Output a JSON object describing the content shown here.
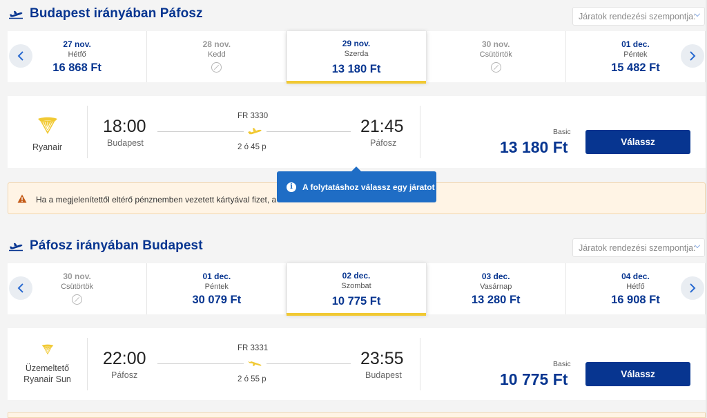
{
  "outbound": {
    "title": "Budapest irányában Páfosz",
    "sort_placeholder": "Járatok rendezési szempontja:",
    "dates": [
      {
        "date": "27 nov.",
        "weekday": "Hétfő",
        "price": "16 868 Ft",
        "available": true,
        "active": false
      },
      {
        "date": "28 nov.",
        "weekday": "Kedd",
        "price": "",
        "available": false,
        "active": false
      },
      {
        "date": "29 nov.",
        "weekday": "Szerda",
        "price": "13 180 Ft",
        "available": true,
        "active": true
      },
      {
        "date": "30 nov.",
        "weekday": "Csütörtök",
        "price": "",
        "available": false,
        "active": false
      },
      {
        "date": "01 dec.",
        "weekday": "Péntek",
        "price": "15 482 Ft",
        "available": true,
        "active": false
      }
    ],
    "flight": {
      "carrier": "Ryanair",
      "departure_time": "18:00",
      "departure_city": "Budapest",
      "flight_number": "FR 3330",
      "duration": "2 ó 45 p",
      "arrival_time": "21:45",
      "arrival_city": "Páfosz",
      "fare_name": "Basic",
      "fare_price": "13 180 Ft",
      "select_label": "Válassz"
    }
  },
  "warning_text": "Ha a megjelenítettől eltérő pénznemben vezetett kártyával fizet, a",
  "tooltip_text": "A folytatáshoz válassz egy járatot",
  "inbound": {
    "title": "Páfosz irányában Budapest",
    "sort_placeholder": "Járatok rendezési szempontja:",
    "dates": [
      {
        "date": "30 nov.",
        "weekday": "Csütörtök",
        "price": "",
        "available": false,
        "active": false
      },
      {
        "date": "01 dec.",
        "weekday": "Péntek",
        "price": "30 079 Ft",
        "available": true,
        "active": false
      },
      {
        "date": "02 dec.",
        "weekday": "Szombat",
        "price": "10 775 Ft",
        "available": true,
        "active": true
      },
      {
        "date": "03 dec.",
        "weekday": "Vasárnap",
        "price": "13 280 Ft",
        "available": true,
        "active": false
      },
      {
        "date": "04 dec.",
        "weekday": "Hétfő",
        "price": "16 908 Ft",
        "available": true,
        "active": false
      }
    ],
    "flight": {
      "carrier_line1": "Üzemeltető",
      "carrier_line2": "Ryanair Sun",
      "departure_time": "22:00",
      "departure_city": "Páfosz",
      "flight_number": "FR 3331",
      "duration": "2 ó 55 p",
      "arrival_time": "23:55",
      "arrival_city": "Budapest",
      "fare_name": "Basic",
      "fare_price": "10 775 Ft",
      "select_label": "Válassz"
    }
  },
  "colors": {
    "brand_blue": "#073590",
    "accent_yellow": "#f1c933",
    "tooltip_blue": "#1f6dc5",
    "warning_bg": "#fff4e5"
  }
}
